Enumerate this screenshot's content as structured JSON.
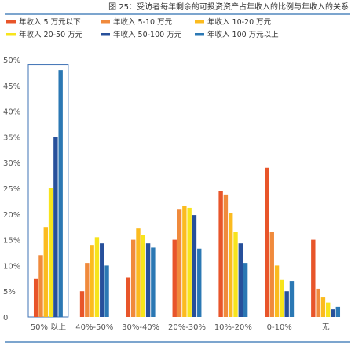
{
  "chart_data": {
    "type": "bar",
    "title": "图 25：受访者每年剩余的可投资资产占年收入的比例与年收入的关系",
    "categories": [
      "50% 以上",
      "40%-50%",
      "30%-40%",
      "20%-30%",
      "10%-20%",
      "0-10%",
      "无"
    ],
    "ylim": [
      0,
      50
    ],
    "yticks": [
      "0",
      "5%",
      "10%",
      "15%",
      "20%",
      "25%",
      "30%",
      "35%",
      "40%",
      "45%",
      "50%"
    ],
    "legend_position": "top-left",
    "highlighted_category": "50% 以上",
    "series": [
      {
        "name": "年收入 5 万元以下",
        "color": "#e8552a",
        "values": [
          7.5,
          5,
          7.7,
          15,
          24.5,
          29,
          15
        ]
      },
      {
        "name": "年收入 5-10 万元",
        "color": "#f08a3c",
        "values": [
          12,
          10.5,
          15,
          21,
          23.8,
          16.5,
          5.5
        ]
      },
      {
        "name": "年收入 10-20 万元",
        "color": "#fbbb1f",
        "values": [
          17.5,
          14,
          17.2,
          21.5,
          20.2,
          10,
          3.8
        ]
      },
      {
        "name": "年收入 20-50 万元",
        "color": "#f7e41c",
        "values": [
          25,
          15.5,
          16,
          21.2,
          16.5,
          7.2,
          2.8
        ]
      },
      {
        "name": "年收入 50-100 万元",
        "color": "#27509b",
        "values": [
          35,
          14.3,
          14.3,
          19.8,
          14.3,
          5,
          1.5
        ]
      },
      {
        "name": "年收入 100 万元以上",
        "color": "#2b78b4",
        "values": [
          48,
          10,
          13.5,
          13.3,
          10.5,
          7,
          2
        ]
      }
    ]
  }
}
